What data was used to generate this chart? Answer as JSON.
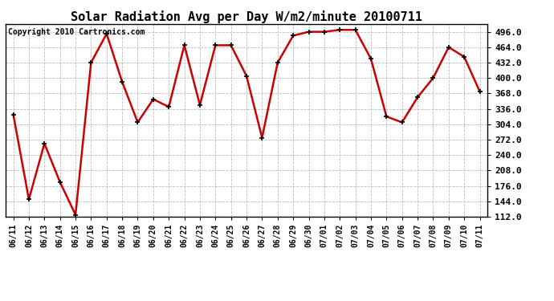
{
  "title": "Solar Radiation Avg per Day W/m2/minute 20100711",
  "copyright": "Copyright 2010 Cartronics.com",
  "labels": [
    "06/11",
    "06/12",
    "06/13",
    "06/14",
    "06/15",
    "06/16",
    "06/17",
    "06/18",
    "06/19",
    "06/20",
    "06/21",
    "06/22",
    "06/23",
    "06/24",
    "06/25",
    "06/26",
    "06/27",
    "06/28",
    "06/29",
    "06/30",
    "07/01",
    "07/02",
    "07/03",
    "07/04",
    "07/05",
    "07/06",
    "07/07",
    "07/08",
    "07/09",
    "07/10",
    "07/11"
  ],
  "values": [
    324,
    148,
    264,
    184,
    116,
    432,
    492,
    392,
    308,
    356,
    340,
    468,
    344,
    468,
    468,
    404,
    276,
    432,
    488,
    496,
    496,
    500,
    500,
    440,
    320,
    308,
    360,
    400,
    464,
    444,
    372
  ],
  "line_color": "#cc0000",
  "marker": "+",
  "marker_color": "#000000",
  "marker_size": 5,
  "line_width": 1.8,
  "bg_color": "#ffffff",
  "grid_color": "#bbbbbb",
  "ylim": [
    112,
    512
  ],
  "yticks": [
    112.0,
    144.0,
    176.0,
    208.0,
    240.0,
    272.0,
    304.0,
    336.0,
    368.0,
    400.0,
    432.0,
    464.0,
    496.0
  ],
  "title_fontsize": 11,
  "copyright_fontsize": 7,
  "tick_fontsize": 7,
  "ytick_fontsize": 8
}
